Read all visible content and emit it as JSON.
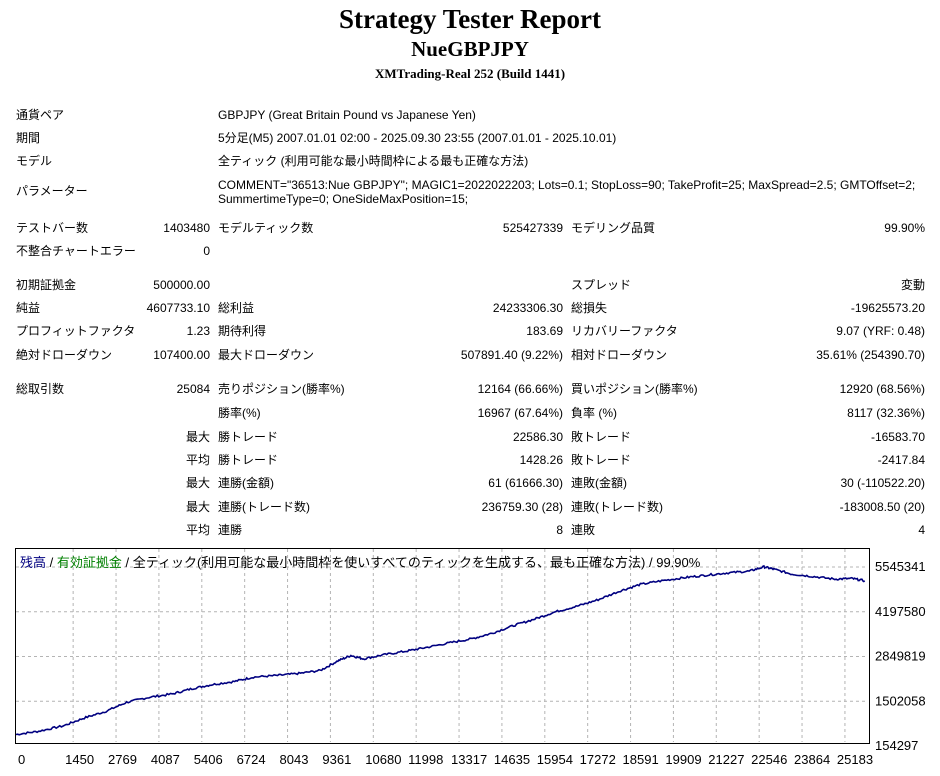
{
  "header": {
    "title": "Strategy Tester Report",
    "ea_name": "NueGBPJPY",
    "server": "XMTrading-Real 252 (Build 1441)"
  },
  "info": {
    "symbol_label": "通貨ペア",
    "symbol_value": "GBPJPY (Great Britain Pound vs Japanese Yen)",
    "period_label": "期間",
    "period_value": "5分足(M5) 2007.01.01 02:00 - 2025.09.30 23:55 (2007.01.01 - 2025.10.01)",
    "model_label": "モデル",
    "model_value": "全ティック (利用可能な最小時間枠による最も正確な方法)",
    "params_label": "パラメーター",
    "params_line1": "COMMENT=\"36513:Nue GBPJPY\"; MAGIC1=2022022203; Lots=0.1; StopLoss=90; TakeProfit=25; MaxSpread=2.5; GMTOffset=2;",
    "params_line2": "SummertimeType=0; OneSideMaxPosition=15;"
  },
  "stats": {
    "bars_label": "テストバー数",
    "bars_value": "1403480",
    "ticks_label": "モデルティック数",
    "ticks_value": "525427339",
    "quality_label": "モデリング品質",
    "quality_value": "99.90%",
    "mismatch_label": "不整合チャートエラー",
    "mismatch_value": "0",
    "deposit_label": "初期証拠金",
    "deposit_value": "500000.00",
    "spread_label": "スプレッド",
    "spread_value": "変動",
    "net_label": "純益",
    "net_value": "4607733.10",
    "gross_profit_label": "総利益",
    "gross_profit_value": "24233306.30",
    "gross_loss_label": "総損失",
    "gross_loss_value": "-19625573.20",
    "pf_label": "プロフィットファクタ",
    "pf_value": "1.23",
    "expected_label": "期待利得",
    "expected_value": "183.69",
    "recovery_label": "リカバリーファクタ",
    "recovery_value": "9.07 (YRF: 0.48)",
    "abs_dd_label": "絶対ドローダウン",
    "abs_dd_value": "107400.00",
    "max_dd_label": "最大ドローダウン",
    "max_dd_value": "507891.40 (9.22%)",
    "rel_dd_label": "相対ドローダウン",
    "rel_dd_value": "35.61% (254390.70)",
    "total_trades_label": "総取引数",
    "total_trades_value": "25084",
    "short_label": "売りポジション(勝率%)",
    "short_value": "12164 (66.66%)",
    "long_label": "買いポジション(勝率%)",
    "long_value": "12920 (68.56%)",
    "winrate_label": "勝率(%)",
    "winrate_value": "16967 (67.64%)",
    "lossrate_label": "負率 (%)",
    "lossrate_value": "8117 (32.36%)",
    "max_prefix": "最大",
    "avg_prefix": "平均",
    "largest_win_label": "勝トレード",
    "largest_win_value": "22586.30",
    "largest_loss_label": "敗トレード",
    "largest_loss_value": "-16583.70",
    "avg_win_label": "勝トレード",
    "avg_win_value": "1428.26",
    "avg_loss_label": "敗トレード",
    "avg_loss_value": "-2417.84",
    "max_cons_wins_label": "連勝(金額)",
    "max_cons_wins_value": "61 (61666.30)",
    "max_cons_losses_label": "連敗(金額)",
    "max_cons_losses_value": "30 (-110522.20)",
    "max_cons_profit_label": "連勝(トレード数)",
    "max_cons_profit_value": "236759.30 (28)",
    "max_cons_loss_label": "連敗(トレード数)",
    "max_cons_loss_value": "-183008.50 (20)",
    "avg_cons_wins_label": "連勝",
    "avg_cons_wins_value": "8",
    "avg_cons_losses_label": "連敗",
    "avg_cons_losses_value": "4"
  },
  "legend": {
    "balance": "残高",
    "sep1": " / ",
    "equity": "有効証拠金",
    "sep2": " / ",
    "rest": "全ティック(利用可能な最小時間枠を使いすべてのティックを生成する、最も正確な方法) / 99.90%",
    "balance_color": "#000080",
    "equity_color": "#008000"
  },
  "chart_data": {
    "type": "line",
    "x_ticks": [
      "0",
      "1450",
      "2769",
      "4087",
      "5406",
      "6724",
      "8043",
      "9361",
      "10680",
      "11998",
      "13317",
      "14635",
      "15954",
      "17272",
      "18591",
      "19909",
      "21227",
      "22546",
      "23864",
      "25183"
    ],
    "y_ticks": [
      "5545341",
      "4197580",
      "2849819",
      "1502058",
      "154297"
    ],
    "xlim": [
      0,
      26200
    ],
    "ylim": [
      154297,
      5545341
    ],
    "grid": true,
    "line_color": "#000080",
    "series": [
      {
        "x": [
          0,
          700,
          1450,
          2100,
          2769,
          3400,
          4087,
          4800,
          5406,
          6000,
          6724,
          7300,
          8043,
          8700,
          9361,
          9900,
          10300,
          10680,
          11300,
          11998,
          12600,
          13317,
          14000,
          14635,
          15300,
          15954,
          16600,
          17272,
          17900,
          18591,
          19200,
          19909,
          20600,
          21227,
          21900,
          22546,
          23000,
          23300,
          23864,
          24500,
          25183,
          25700,
          26100
        ],
        "y": [
          500000,
          600000,
          760000,
          1000000,
          1200000,
          1470000,
          1620000,
          1720000,
          1880000,
          2000000,
          2100000,
          2230000,
          2280000,
          2340000,
          2430000,
          2720000,
          2880000,
          2780000,
          2900000,
          3010000,
          3120000,
          3260000,
          3380000,
          3550000,
          3780000,
          3980000,
          4200000,
          4370000,
          4560000,
          4830000,
          5020000,
          5140000,
          5230000,
          5300000,
          5370000,
          5420000,
          5550000,
          5480000,
          5330000,
          5260000,
          5180000,
          5200000,
          5130000
        ]
      }
    ]
  }
}
